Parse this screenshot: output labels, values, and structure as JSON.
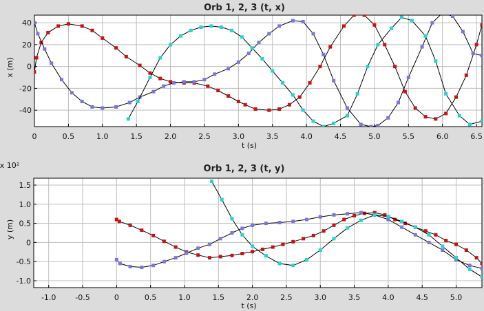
{
  "chart_data": [
    {
      "type": "line",
      "title": "Orb 1, 2, 3 (t, x)",
      "xlabel": "t (s)",
      "ylabel": "x (m)",
      "exponent_label": "",
      "xlim": [
        0,
        6.58
      ],
      "ylim": [
        -55,
        47
      ],
      "xticks": [
        0,
        0.5,
        1.0,
        1.5,
        2.0,
        2.5,
        3.0,
        3.5,
        4.0,
        4.5,
        5.0,
        5.5,
        6.0,
        6.5
      ],
      "xtick_labels": [
        "0",
        "0.5",
        "1.0",
        "1.5",
        "2.0",
        "2.5",
        "3.0",
        "3.5",
        "4.0",
        "4.5",
        "5.0",
        "5.5",
        "6.0",
        "6.5"
      ],
      "yticks": [
        -40,
        -20,
        0,
        20,
        40
      ],
      "ytick_labels": [
        "-40",
        "-20",
        "0",
        "20",
        "40"
      ],
      "grid": true,
      "series": [
        {
          "color": "#cc1111",
          "x": [
            0.0,
            0.03,
            0.1,
            0.2,
            0.35,
            0.5,
            0.7,
            0.85,
            1.0,
            1.2,
            1.35,
            1.55,
            1.7,
            1.85,
            2.0,
            2.2,
            2.35,
            2.55,
            2.7,
            2.85,
            3.0,
            3.1,
            3.25,
            3.45,
            3.6,
            3.75,
            3.9,
            4.05,
            4.2,
            4.35,
            4.55,
            4.7,
            4.85,
            5.0,
            5.15,
            5.3,
            5.45,
            5.6,
            5.75,
            5.9,
            6.05,
            6.2,
            6.35,
            6.5,
            6.58
          ],
          "y": [
            -5,
            8,
            22,
            31,
            37,
            39,
            37,
            33,
            26,
            17,
            9,
            1,
            -6,
            -11,
            -14,
            -15,
            -15,
            -18,
            -22,
            -27,
            -32,
            -35,
            -39,
            -40,
            -39,
            -35,
            -28,
            -15,
            0,
            18,
            37,
            47,
            47,
            38,
            20,
            0,
            -23,
            -38,
            -46,
            -48,
            -43,
            -28,
            -8,
            20,
            38
          ]
        },
        {
          "color": "#7777dd",
          "x": [
            0.0,
            0.05,
            0.15,
            0.25,
            0.4,
            0.55,
            0.7,
            0.85,
            1.0,
            1.2,
            1.4,
            1.55,
            1.75,
            1.9,
            2.05,
            2.2,
            2.35,
            2.5,
            2.65,
            2.85,
            3.0,
            3.15,
            3.3,
            3.45,
            3.6,
            3.8,
            3.95,
            4.1,
            4.25,
            4.4,
            4.6,
            4.8,
            4.95,
            5.05,
            5.2,
            5.35,
            5.5,
            5.7,
            5.85,
            6.0,
            6.15,
            6.3,
            6.45,
            6.58
          ],
          "y": [
            40,
            30,
            16,
            3,
            -12,
            -24,
            -32,
            -37,
            -38,
            -37,
            -33,
            -28,
            -23,
            -18,
            -15,
            -14,
            -14,
            -12,
            -7,
            -2,
            4,
            12,
            22,
            30,
            37,
            42,
            41,
            30,
            11,
            -13,
            -38,
            -53,
            -55,
            -54,
            -47,
            -33,
            -10,
            18,
            40,
            49,
            46,
            32,
            12,
            10
          ]
        },
        {
          "color": "#22d4d4",
          "x": [
            1.38,
            1.52,
            1.7,
            1.85,
            2.0,
            2.15,
            2.3,
            2.45,
            2.6,
            2.75,
            2.9,
            3.05,
            3.2,
            3.35,
            3.5,
            3.65,
            3.8,
            3.95,
            4.1,
            4.25,
            4.4,
            4.6,
            4.75,
            4.9,
            5.05,
            5.25,
            5.4,
            5.55,
            5.75,
            5.9,
            6.05,
            6.25,
            6.4,
            6.58
          ],
          "y": [
            -48,
            -32,
            -10,
            8,
            20,
            28,
            33,
            36,
            37,
            36,
            33,
            27,
            17,
            7,
            -4,
            -15,
            -26,
            -40,
            -50,
            -55,
            -52,
            -45,
            -25,
            0,
            20,
            35,
            45,
            42,
            28,
            5,
            -25,
            -45,
            -53,
            -50
          ]
        }
      ]
    },
    {
      "type": "line",
      "title": "Orb 1, 2, 3 (t, y)",
      "xlabel": "t (s)",
      "ylabel": "y (m)",
      "exponent_label": "x 10²",
      "xlim": [
        -1.22,
        5.38
      ],
      "ylim": [
        -1.18,
        1.68
      ],
      "xticks": [
        -1.0,
        -0.5,
        0,
        0.5,
        1.0,
        1.5,
        2.0,
        2.5,
        3.0,
        3.5,
        4.0,
        4.5,
        5.0
      ],
      "xtick_labels": [
        "-1.0",
        "-0.5",
        "0",
        "0.5",
        "1.0",
        "1.5",
        "2.0",
        "2.5",
        "3.0",
        "3.5",
        "4.0",
        "4.5",
        "5.0"
      ],
      "yticks": [
        -1.0,
        -0.5,
        0,
        0.5,
        1.0,
        1.5
      ],
      "ytick_labels": [
        "-1.0",
        "-0.5",
        "0",
        "0.5",
        "1.0",
        "1.5"
      ],
      "grid": true,
      "series": [
        {
          "color": "#cc1111",
          "x": [
            0.0,
            0.04,
            0.2,
            0.37,
            0.54,
            0.7,
            0.87,
            1.03,
            1.2,
            1.37,
            1.53,
            1.7,
            1.85,
            2.0,
            2.15,
            2.3,
            2.45,
            2.6,
            2.75,
            2.9,
            3.05,
            3.2,
            3.35,
            3.5,
            3.65,
            3.8,
            3.95,
            4.1,
            4.25,
            4.4,
            4.55,
            4.7,
            4.85,
            5.0,
            5.15,
            5.3,
            5.38
          ],
          "y": [
            0.6,
            0.55,
            0.45,
            0.32,
            0.18,
            0.03,
            -0.12,
            -0.25,
            -0.33,
            -0.4,
            -0.37,
            -0.34,
            -0.29,
            -0.24,
            -0.18,
            -0.12,
            -0.05,
            0.02,
            0.1,
            0.18,
            0.3,
            0.45,
            0.6,
            0.7,
            0.76,
            0.78,
            0.72,
            0.6,
            0.5,
            0.4,
            0.3,
            0.2,
            0.05,
            -0.05,
            -0.2,
            -0.4,
            -0.55
          ]
        },
        {
          "color": "#7777dd",
          "x": [
            0.0,
            0.05,
            0.2,
            0.37,
            0.54,
            0.7,
            0.87,
            1.03,
            1.2,
            1.37,
            1.53,
            1.7,
            1.85,
            2.0,
            2.2,
            2.4,
            2.6,
            2.8,
            3.0,
            3.2,
            3.4,
            3.6,
            3.8,
            4.0,
            4.2,
            4.4,
            4.6,
            4.8,
            5.0,
            5.2,
            5.38
          ],
          "y": [
            -0.45,
            -0.55,
            -0.63,
            -0.65,
            -0.6,
            -0.5,
            -0.4,
            -0.28,
            -0.15,
            -0.05,
            0.1,
            0.25,
            0.37,
            0.45,
            0.5,
            0.52,
            0.55,
            0.6,
            0.67,
            0.72,
            0.75,
            0.78,
            0.72,
            0.6,
            0.4,
            0.2,
            0.0,
            -0.2,
            -0.45,
            -0.6,
            -0.68
          ]
        },
        {
          "color": "#22d4d4",
          "x": [
            1.4,
            1.55,
            1.7,
            1.85,
            2.0,
            2.2,
            2.4,
            2.6,
            2.8,
            3.0,
            3.2,
            3.4,
            3.6,
            3.8,
            4.0,
            4.2,
            4.4,
            4.6,
            4.8,
            5.0,
            5.2,
            5.38
          ],
          "y": [
            1.6,
            1.12,
            0.62,
            0.2,
            -0.1,
            -0.35,
            -0.55,
            -0.6,
            -0.45,
            -0.2,
            0.1,
            0.38,
            0.58,
            0.72,
            0.68,
            0.55,
            0.4,
            0.2,
            -0.1,
            -0.4,
            -0.7,
            -0.9
          ]
        }
      ]
    }
  ]
}
